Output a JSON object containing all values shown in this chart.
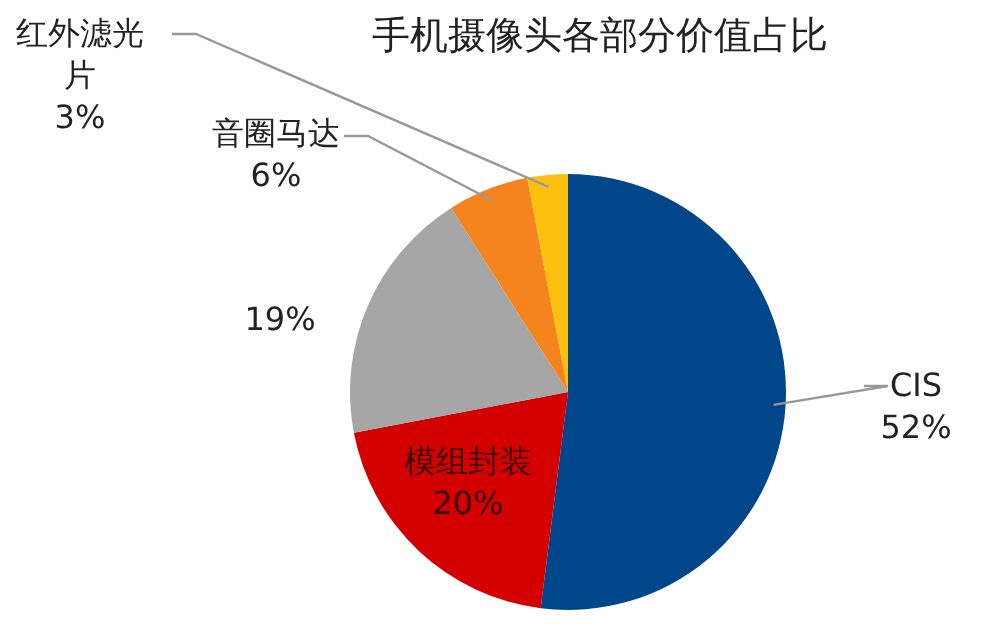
{
  "chart_data": {
    "type": "pie",
    "title": "手机摄像头各部分价值占比",
    "categories": [
      "CIS",
      "模组封装",
      null,
      "音圈马达",
      "红外滤光片"
    ],
    "values": [
      52,
      20,
      19,
      6,
      3
    ],
    "colors": [
      "#00468b",
      "#d40000",
      "#a6a6a6",
      "#f5841f",
      "#fdc00f"
    ],
    "value_labels": [
      "52%",
      "20%",
      "19%",
      "6%",
      "3%"
    ]
  }
}
